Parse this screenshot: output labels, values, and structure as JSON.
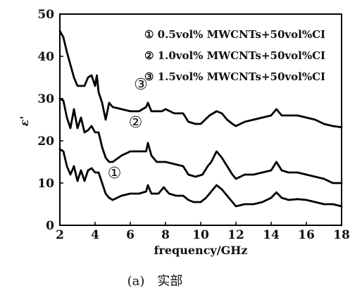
{
  "chart_data": {
    "type": "line",
    "xlabel": "frequency/GHz",
    "ylabel": "ε'",
    "xlim": [
      2,
      18
    ],
    "ylim": [
      0,
      50
    ],
    "x_ticks": [
      "2",
      "4",
      "6",
      "8",
      "10",
      "12",
      "14",
      "16",
      "18"
    ],
    "y_ticks": [
      "0",
      "10",
      "20",
      "30",
      "40",
      "50"
    ],
    "legend_position": "top-right",
    "caption": "(a)　实部",
    "series": [
      {
        "name": "① 0.5vol% MWCNTs+50vol%CI",
        "marker": "①",
        "marker_at": [
          5.1,
          12.5
        ],
        "points": [
          [
            2.0,
            18
          ],
          [
            2.2,
            17.5
          ],
          [
            2.4,
            14
          ],
          [
            2.6,
            12
          ],
          [
            2.8,
            14
          ],
          [
            3.0,
            10.5
          ],
          [
            3.2,
            13
          ],
          [
            3.4,
            10.5
          ],
          [
            3.6,
            13
          ],
          [
            3.8,
            13.5
          ],
          [
            4.0,
            12.5
          ],
          [
            4.2,
            12.5
          ],
          [
            4.4,
            10
          ],
          [
            4.6,
            7.5
          ],
          [
            4.8,
            6.5
          ],
          [
            5.0,
            6
          ],
          [
            5.5,
            7
          ],
          [
            6.0,
            7.5
          ],
          [
            6.5,
            7.5
          ],
          [
            6.9,
            8
          ],
          [
            7.0,
            9.5
          ],
          [
            7.2,
            7.5
          ],
          [
            7.6,
            7.5
          ],
          [
            7.9,
            9
          ],
          [
            8.2,
            7.5
          ],
          [
            8.6,
            7
          ],
          [
            9.0,
            7
          ],
          [
            9.3,
            6
          ],
          [
            9.6,
            5.5
          ],
          [
            10.0,
            5.5
          ],
          [
            10.3,
            6.5
          ],
          [
            10.6,
            8
          ],
          [
            10.9,
            9.5
          ],
          [
            11.2,
            8.5
          ],
          [
            11.5,
            7
          ],
          [
            11.8,
            5.5
          ],
          [
            12.0,
            4.5
          ],
          [
            12.5,
            5
          ],
          [
            13.0,
            5
          ],
          [
            13.5,
            5.5
          ],
          [
            14.0,
            6.5
          ],
          [
            14.3,
            7.8
          ],
          [
            14.6,
            6.5
          ],
          [
            15.0,
            6
          ],
          [
            15.5,
            6.2
          ],
          [
            16.0,
            6
          ],
          [
            16.5,
            5.5
          ],
          [
            17.0,
            5
          ],
          [
            17.5,
            5
          ],
          [
            18.0,
            4.5
          ]
        ]
      },
      {
        "name": "② 1.0vol% MWCNTs+50vol%CI",
        "marker": "②",
        "marker_at": [
          6.3,
          24.5
        ],
        "points": [
          [
            2.0,
            30
          ],
          [
            2.2,
            29.5
          ],
          [
            2.4,
            25.5
          ],
          [
            2.6,
            23
          ],
          [
            2.8,
            27.5
          ],
          [
            3.0,
            23
          ],
          [
            3.2,
            25.5
          ],
          [
            3.4,
            22
          ],
          [
            3.6,
            22.5
          ],
          [
            3.8,
            23.5
          ],
          [
            4.0,
            22
          ],
          [
            4.2,
            22
          ],
          [
            4.4,
            18.5
          ],
          [
            4.6,
            16
          ],
          [
            4.8,
            15
          ],
          [
            5.0,
            15
          ],
          [
            5.5,
            16.5
          ],
          [
            6.0,
            17.5
          ],
          [
            6.5,
            17.5
          ],
          [
            6.9,
            17.5
          ],
          [
            7.0,
            19.5
          ],
          [
            7.2,
            16.5
          ],
          [
            7.5,
            15
          ],
          [
            8.0,
            15
          ],
          [
            8.5,
            14.5
          ],
          [
            9.0,
            14
          ],
          [
            9.3,
            12
          ],
          [
            9.7,
            11.5
          ],
          [
            10.1,
            12
          ],
          [
            10.4,
            14
          ],
          [
            10.6,
            15
          ],
          [
            10.9,
            17.5
          ],
          [
            11.2,
            16
          ],
          [
            11.5,
            14
          ],
          [
            11.8,
            12
          ],
          [
            12.0,
            11
          ],
          [
            12.5,
            12
          ],
          [
            13.0,
            12
          ],
          [
            13.5,
            12.5
          ],
          [
            14.0,
            13
          ],
          [
            14.3,
            15
          ],
          [
            14.6,
            13
          ],
          [
            15.0,
            12.5
          ],
          [
            15.5,
            12.5
          ],
          [
            16.0,
            12
          ],
          [
            16.5,
            11.5
          ],
          [
            17.0,
            11
          ],
          [
            17.5,
            10
          ],
          [
            18.0,
            10
          ]
        ]
      },
      {
        "name": "③ 1.5vol% MWCNTs+50vol%CI",
        "marker": "③",
        "marker_at": [
          6.6,
          33.5
        ],
        "points": [
          [
            2.0,
            46
          ],
          [
            2.2,
            44.5
          ],
          [
            2.4,
            41
          ],
          [
            2.6,
            38
          ],
          [
            2.8,
            35
          ],
          [
            3.0,
            33
          ],
          [
            3.2,
            33
          ],
          [
            3.4,
            33
          ],
          [
            3.6,
            35
          ],
          [
            3.8,
            35.5
          ],
          [
            4.0,
            33
          ],
          [
            4.1,
            35.5
          ],
          [
            4.2,
            31.5
          ],
          [
            4.4,
            29
          ],
          [
            4.6,
            25
          ],
          [
            4.8,
            29
          ],
          [
            5.0,
            28
          ],
          [
            5.5,
            27.5
          ],
          [
            6.0,
            27
          ],
          [
            6.5,
            27
          ],
          [
            6.9,
            28
          ],
          [
            7.0,
            29
          ],
          [
            7.2,
            27
          ],
          [
            7.8,
            27
          ],
          [
            8.0,
            27.5
          ],
          [
            8.5,
            26.5
          ],
          [
            9.0,
            26.5
          ],
          [
            9.3,
            24.5
          ],
          [
            9.7,
            24
          ],
          [
            10.0,
            24
          ],
          [
            10.5,
            26
          ],
          [
            10.9,
            27
          ],
          [
            11.2,
            26.5
          ],
          [
            11.5,
            25
          ],
          [
            11.8,
            24
          ],
          [
            12.0,
            23.5
          ],
          [
            12.5,
            24.5
          ],
          [
            13.0,
            25
          ],
          [
            13.5,
            25.5
          ],
          [
            14.0,
            26
          ],
          [
            14.3,
            27.5
          ],
          [
            14.6,
            26
          ],
          [
            15.0,
            26
          ],
          [
            15.5,
            26
          ],
          [
            16.0,
            25.5
          ],
          [
            16.5,
            25
          ],
          [
            17.0,
            24
          ],
          [
            17.5,
            23.5
          ],
          [
            18.0,
            23.2
          ]
        ]
      }
    ]
  }
}
